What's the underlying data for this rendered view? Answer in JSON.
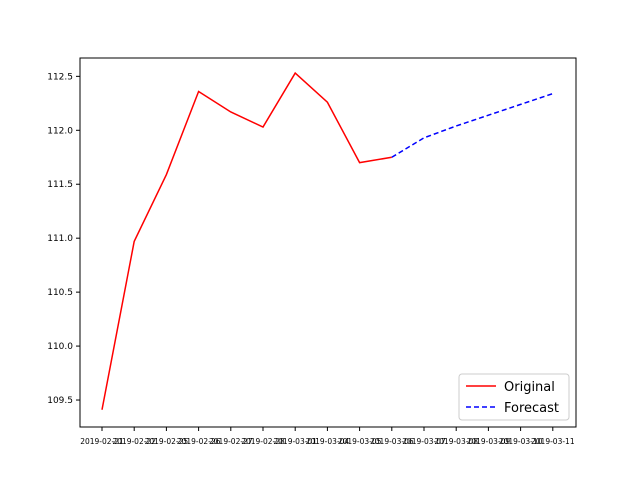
{
  "chart_data": {
    "type": "line",
    "categories": [
      "2019-02-21",
      "2019-02-22",
      "2019-02-25",
      "2019-02-26",
      "2019-02-27",
      "2019-02-28",
      "2019-03-01",
      "2019-03-04",
      "2019-03-05",
      "2019-03-06",
      "2019-03-07",
      "2019-03-08",
      "2019-03-09",
      "2019-03-10",
      "2019-03-11"
    ],
    "series": [
      {
        "name": "Original",
        "color": "#ff0000",
        "style": "solid",
        "values": [
          109.41,
          110.97,
          111.59,
          112.36,
          112.17,
          112.03,
          112.53,
          112.26,
          111.7,
          111.75,
          null,
          null,
          null,
          null,
          null
        ]
      },
      {
        "name": "Forecast",
        "color": "#0000ff",
        "style": "dashed",
        "values": [
          null,
          null,
          null,
          null,
          null,
          null,
          null,
          null,
          null,
          111.75,
          111.93,
          112.04,
          112.14,
          112.24,
          112.34
        ]
      }
    ],
    "y_ticks": [
      "109.5",
      "110.0",
      "110.5",
      "111.0",
      "111.5",
      "112.0",
      "112.5"
    ],
    "ylim": [
      109.25,
      112.67
    ],
    "grid": false,
    "legend_position": "lower-right"
  }
}
